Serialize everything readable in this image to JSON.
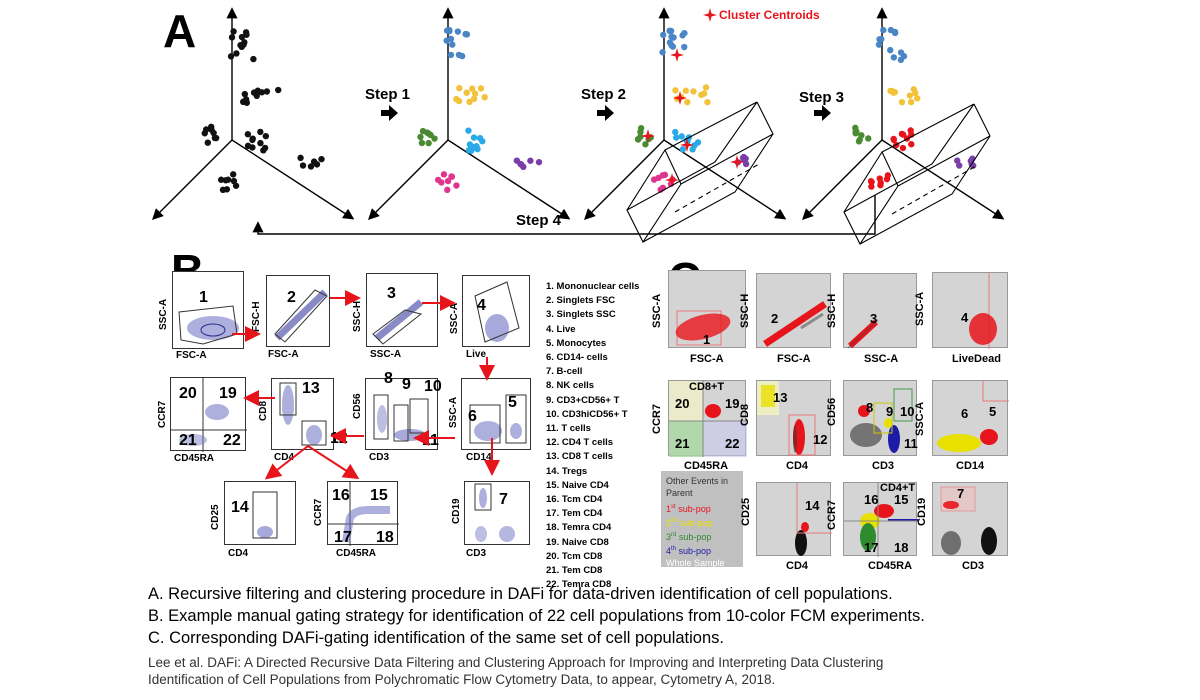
{
  "panelA": {
    "letter": "A",
    "steps": [
      "Step 1",
      "Step 2",
      "Step 3",
      "Step 4"
    ],
    "centroid_label": "Cluster Centroids",
    "colors": {
      "black": "#111111",
      "blue": "#4a86c5",
      "yellow": "#f2c23a",
      "green": "#4a8a32",
      "cyan": "#29a9e6",
      "pink": "#e0358f",
      "purple": "#7a3ea8",
      "red": "#e8141c"
    }
  },
  "panelB": {
    "letter": "B",
    "plots": [
      {
        "num": "1",
        "x": "FSC-A",
        "y": "SSC-A"
      },
      {
        "num": "2",
        "x": "FSC-A",
        "y": "FSC-H"
      },
      {
        "num": "3",
        "x": "SSC-A",
        "y": "SSC-H"
      },
      {
        "num": "4",
        "x": "Live",
        "y": "SSC-A"
      },
      {
        "nums": [
          "20",
          "19",
          "21",
          "22"
        ],
        "x": "CD45RA",
        "y": "CCR7"
      },
      {
        "nums": [
          "13",
          "12"
        ],
        "x": "CD4",
        "y": "CD8"
      },
      {
        "nums": [
          "8",
          "9",
          "10",
          "11"
        ],
        "x": "CD3",
        "y": "CD56"
      },
      {
        "nums": [
          "6",
          "5"
        ],
        "x": "CD14",
        "y": "SSC-A"
      },
      {
        "num": "14",
        "x": "CD4",
        "y": "CD25"
      },
      {
        "nums": [
          "16",
          "15",
          "17",
          "18"
        ],
        "x": "CD45RA",
        "y": "CCR7"
      },
      {
        "num": "7",
        "x": "CD3",
        "y": "CD19"
      }
    ],
    "populations": [
      "1. Mononuclear cells",
      "2. Singlets FSC",
      "3. Singlets SSC",
      "4. Live",
      "5. Monocytes",
      "6. CD14- cells",
      "7. B-cell",
      "8. NK cells",
      "9. CD3+CD56+ T",
      "10. CD3hiCD56+ T",
      "11. T cells",
      "12. CD4 T cells",
      "13. CD8 T cells",
      "14. Tregs",
      "15. Naive CD4",
      "16. Tcm CD4",
      "17. Tem CD4",
      "18. Temra CD4",
      "19. Naive CD8",
      "20. Tcm CD8",
      "21. Tem CD8",
      "22. Temra CD8"
    ]
  },
  "panelC": {
    "letter": "C",
    "plots": [
      {
        "num": "1",
        "x": "FSC-A",
        "y": "SSC-A"
      },
      {
        "num": "2",
        "x": "FSC-A",
        "y": "SSC-H"
      },
      {
        "num": "3",
        "x": "SSC-A",
        "y": "SSC-H"
      },
      {
        "num": "4",
        "x": "LiveDead",
        "y": "SSC-A"
      },
      {
        "title": "CD8+T",
        "nums": [
          "20",
          "19",
          "21",
          "22"
        ],
        "x": "CD45RA",
        "y": "CCR7"
      },
      {
        "nums": [
          "13",
          "12"
        ],
        "x": "CD4",
        "y": "CD8"
      },
      {
        "nums": [
          "8",
          "9",
          "10",
          "11"
        ],
        "x": "CD3",
        "y": "CD56"
      },
      {
        "nums": [
          "6",
          "5"
        ],
        "x": "CD14",
        "y": "SSC-A"
      },
      {
        "num": "14",
        "x": "CD4",
        "y": "CD25"
      },
      {
        "title": "CD4+T",
        "nums": [
          "16",
          "15",
          "17",
          "18"
        ],
        "x": "CD45RA",
        "y": "CCR7"
      },
      {
        "num": "7",
        "x": "CD3",
        "y": "CD19"
      }
    ],
    "legend": {
      "title_line1": "Other Events in",
      "title_line2": "Parent",
      "items": [
        {
          "sup": "st",
          "pre": "1",
          "text": " sub-pop",
          "color": "#e8141c"
        },
        {
          "sup": "nd",
          "pre": "2",
          "text": " sub-pop",
          "color": "#e8e000"
        },
        {
          "sup": "rd",
          "pre": "3",
          "text": " sub-pop",
          "color": "#2e8b2e"
        },
        {
          "sup": "th",
          "pre": "4",
          "text": " sub-pop",
          "color": "#1c1ca8"
        }
      ],
      "whole": "Whole Sample"
    }
  },
  "captions": [
    "A. Recursive filtering and clustering procedure in DAFi for data-driven identification of cell populations.",
    "B. Example manual gating strategy for identification of 22 cell populations from 10-color FCM experiments.",
    "C. Corresponding DAFi-gating identification of the same set of cell populations."
  ],
  "reference": [
    "Lee et al. DAFi: A Directed Recursive Data Filtering and Clustering Approach for Improving and Interpreting Data Clustering",
    "Identification of Cell Populations from Polychromatic Flow Cytometry Data, to appear, Cytometry A, 2018."
  ]
}
